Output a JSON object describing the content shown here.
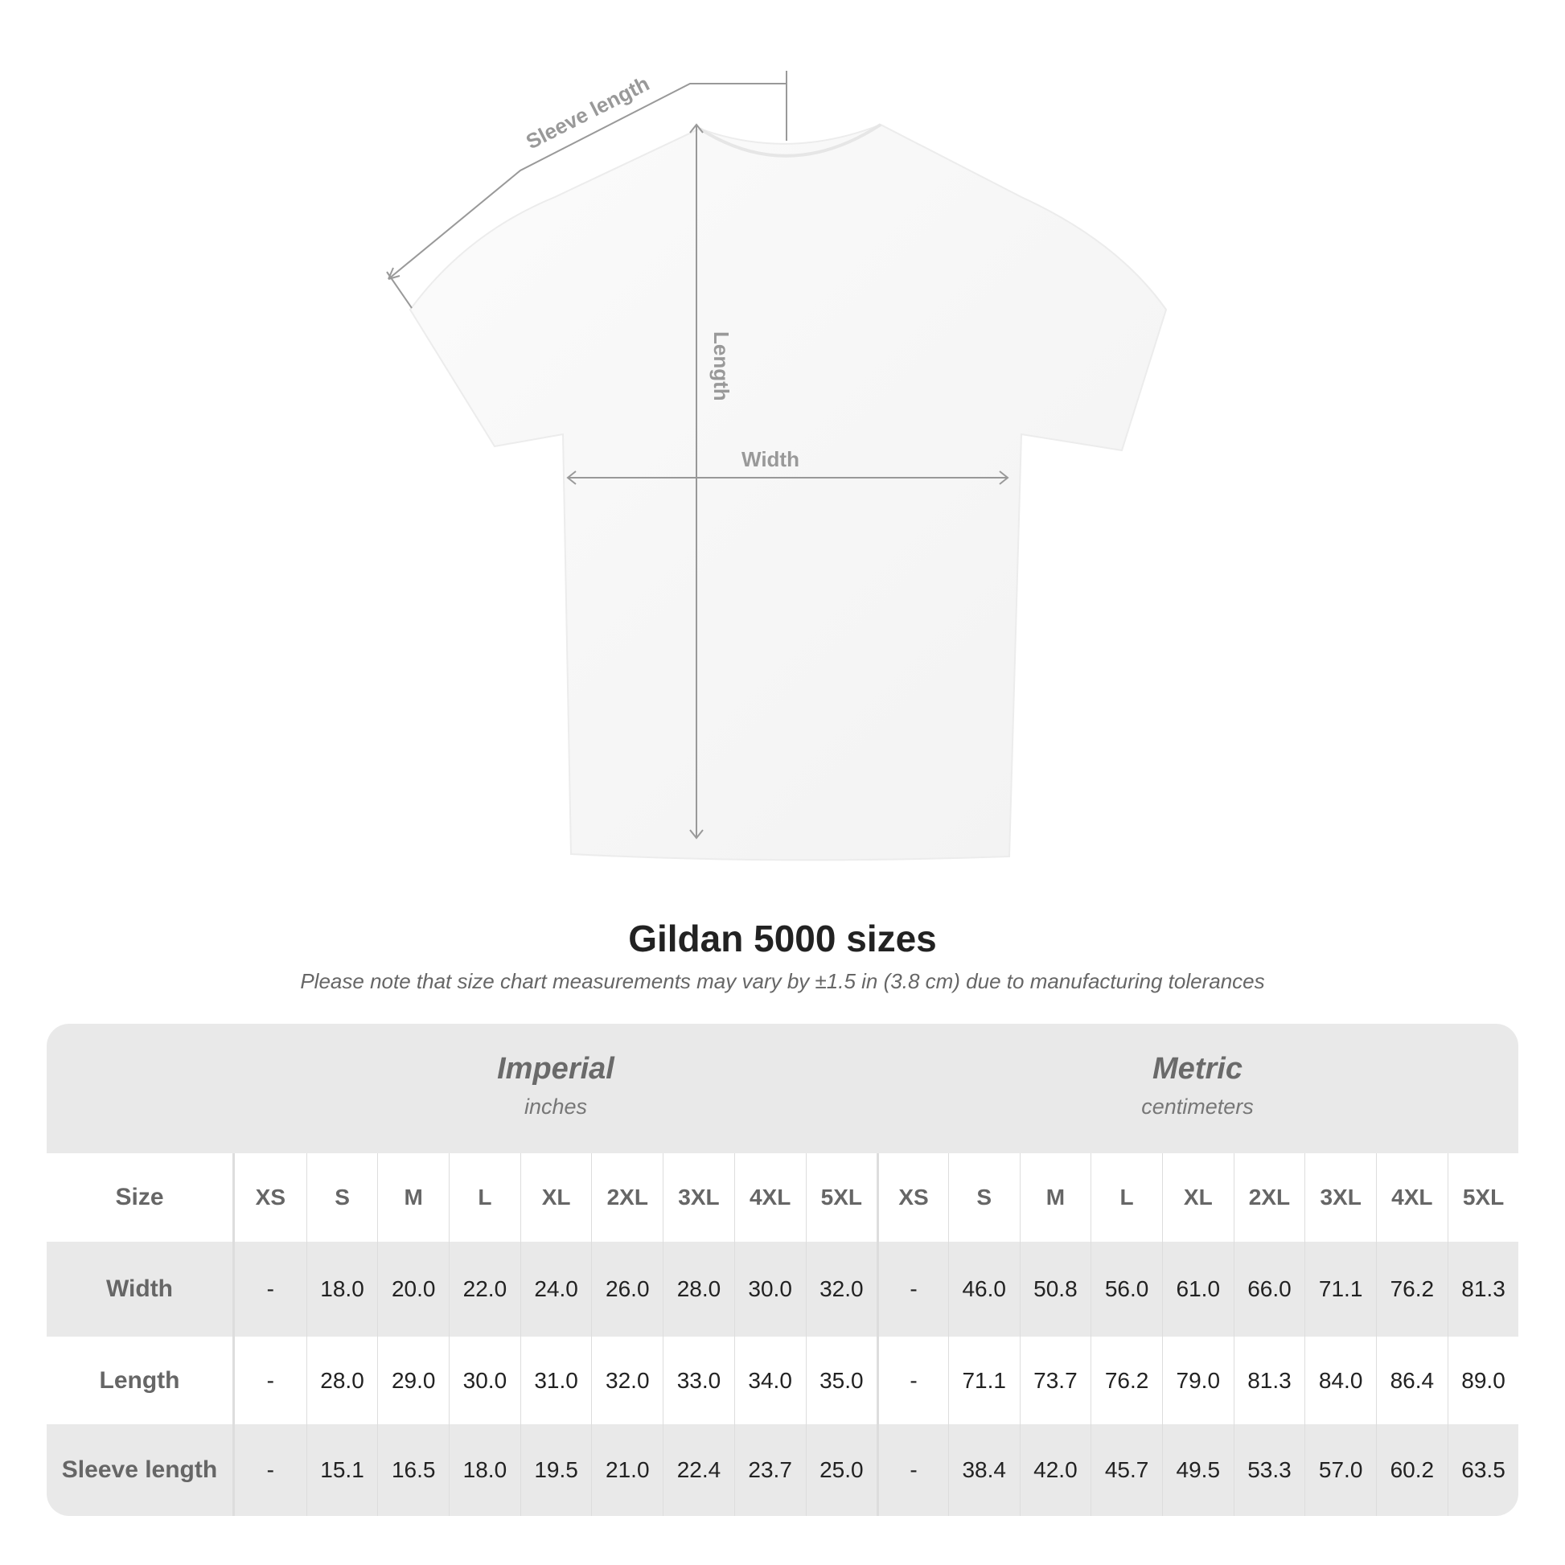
{
  "diagram": {
    "labels": {
      "sleeve": "Sleeve length",
      "length": "Length",
      "width": "Width"
    }
  },
  "title": "Gildan 5000 sizes",
  "note": "Please note that size chart measurements may vary by ±1.5 in (3.8 cm) due to manufacturing tolerances",
  "table": {
    "groups": [
      {
        "name": "Imperial",
        "unit": "inches"
      },
      {
        "name": "Metric",
        "unit": "centimeters"
      }
    ],
    "size_label": "Size",
    "sizes": [
      "XS",
      "S",
      "M",
      "L",
      "XL",
      "2XL",
      "3XL",
      "4XL",
      "5XL"
    ],
    "rows": [
      {
        "label": "Width",
        "imperial": [
          "-",
          "18.0",
          "20.0",
          "22.0",
          "24.0",
          "26.0",
          "28.0",
          "30.0",
          "32.0"
        ],
        "metric": [
          "-",
          "46.0",
          "50.8",
          "56.0",
          "61.0",
          "66.0",
          "71.1",
          "76.2",
          "81.3"
        ]
      },
      {
        "label": "Length",
        "imperial": [
          "-",
          "28.0",
          "29.0",
          "30.0",
          "31.0",
          "32.0",
          "33.0",
          "34.0",
          "35.0"
        ],
        "metric": [
          "-",
          "71.1",
          "73.7",
          "76.2",
          "79.0",
          "81.3",
          "84.0",
          "86.4",
          "89.0"
        ]
      },
      {
        "label": "Sleeve length",
        "imperial": [
          "-",
          "15.1",
          "16.5",
          "18.0",
          "19.5",
          "21.0",
          "22.4",
          "23.7",
          "25.0"
        ],
        "metric": [
          "-",
          "38.4",
          "42.0",
          "45.7",
          "49.5",
          "53.3",
          "57.0",
          "60.2",
          "63.5"
        ]
      }
    ]
  }
}
